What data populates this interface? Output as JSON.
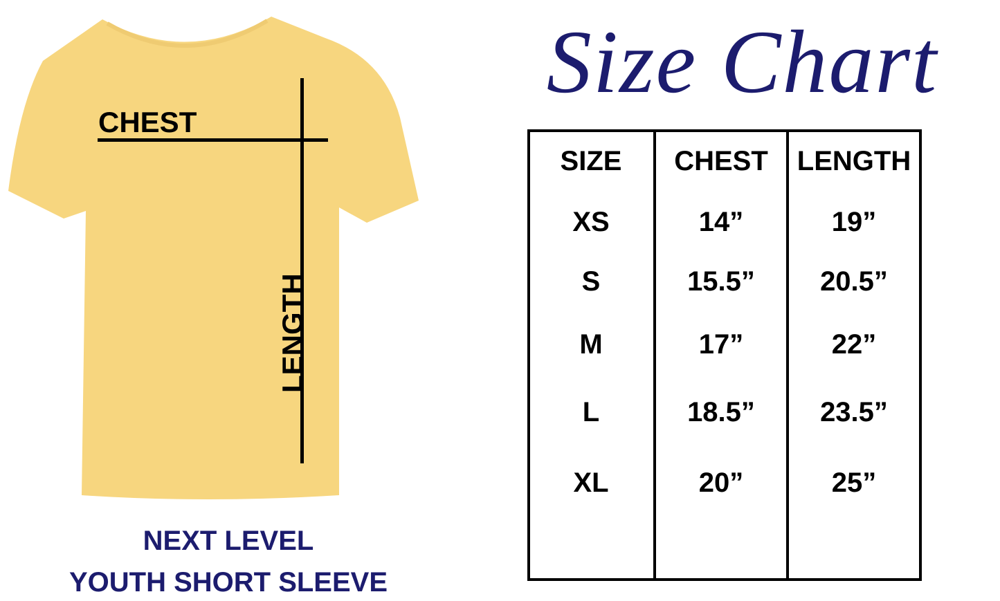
{
  "title": "Size Chart",
  "shirt": {
    "color": "#f7d67f",
    "chest_label": "CHEST",
    "length_label": "LENGTH"
  },
  "caption": {
    "line1": "NEXT LEVEL",
    "line2": "YOUTH SHORT SLEEVE"
  },
  "colors": {
    "accent": "#1c1c6e"
  },
  "table": {
    "headers": [
      "SIZE",
      "CHEST",
      "LENGTH"
    ],
    "rows": [
      [
        "XS",
        "14”",
        "19”"
      ],
      [
        "S",
        "15.5”",
        "20.5”"
      ],
      [
        "M",
        "17”",
        "22”"
      ],
      [
        "L",
        "18.5”",
        "23.5”"
      ],
      [
        "XL",
        "20”",
        "25”"
      ]
    ]
  }
}
